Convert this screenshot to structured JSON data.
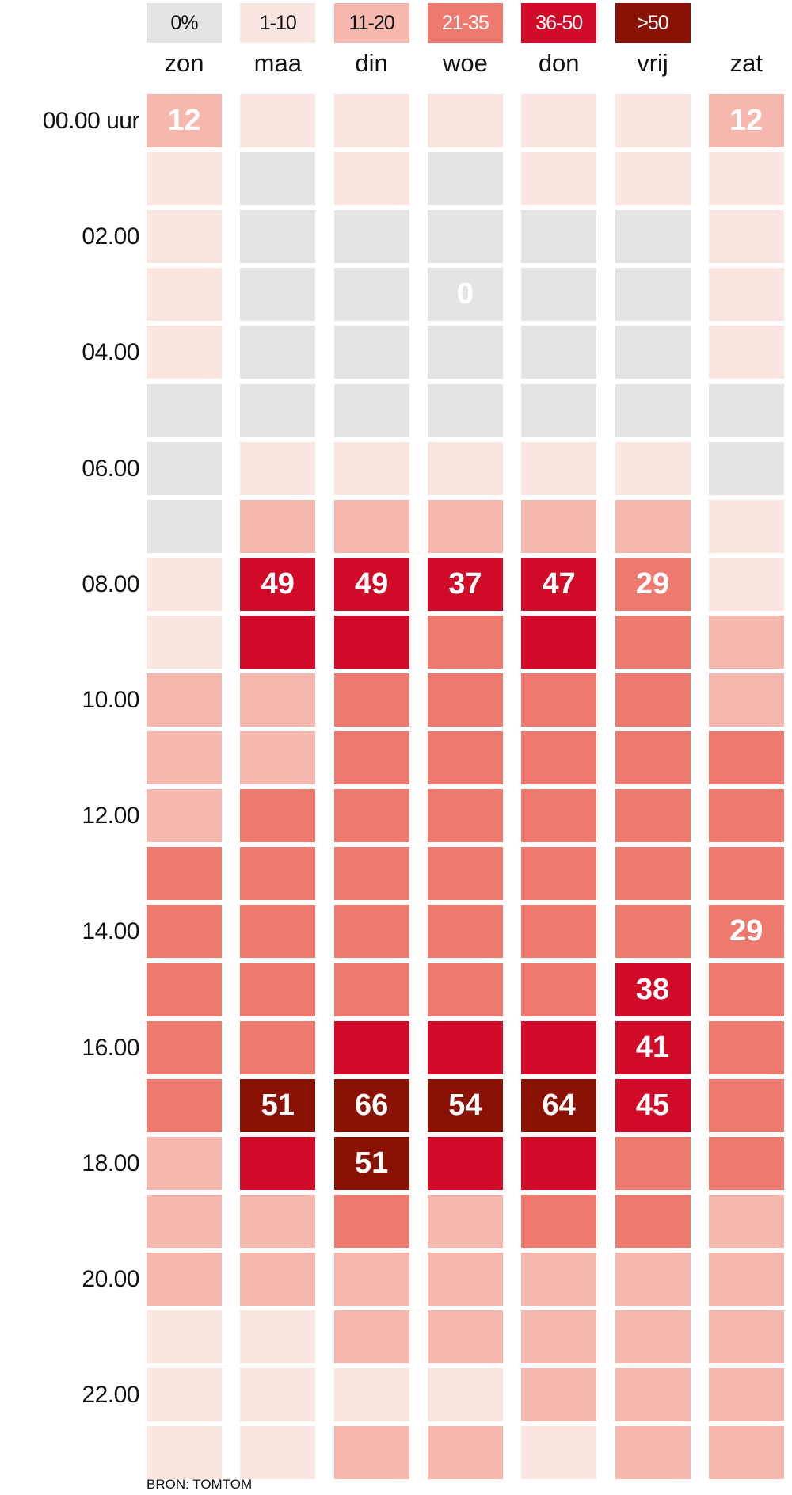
{
  "chart_data": {
    "type": "heatmap",
    "title": "",
    "columns": [
      "zon",
      "maa",
      "din",
      "woe",
      "don",
      "vrij",
      "zat"
    ],
    "row_labels": [
      "00.00 uur",
      "",
      "02.00",
      "",
      "04.00",
      "",
      "06.00",
      "",
      "08.00",
      "",
      "10.00",
      "",
      "12.00",
      "",
      "14.00",
      "",
      "16.00",
      "",
      "18.00",
      "",
      "20.00",
      "",
      "22.00",
      ""
    ],
    "legend": [
      {
        "label": "0%",
        "color": "#e4e4e4",
        "text_color": "#111111"
      },
      {
        "label": "1-10",
        "color": "#fbe5e0",
        "text_color": "#111111"
      },
      {
        "label": "11-20",
        "color": "#f6b7ae",
        "text_color": "#111111"
      },
      {
        "label": "21-35",
        "color": "#ee7a6f",
        "text_color": "#ffffff"
      },
      {
        "label": "36-50",
        "color": "#d10a28",
        "text_color": "#ffffff"
      },
      {
        "label": ">50",
        "color": "#8a1204",
        "text_color": "#ffffff"
      }
    ],
    "levels": [
      [
        2,
        1,
        1,
        1,
        1,
        1,
        2
      ],
      [
        1,
        0,
        1,
        0,
        1,
        1,
        1
      ],
      [
        1,
        0,
        0,
        0,
        0,
        0,
        1
      ],
      [
        1,
        0,
        0,
        0,
        0,
        0,
        1
      ],
      [
        1,
        0,
        0,
        0,
        0,
        0,
        1
      ],
      [
        0,
        0,
        0,
        0,
        0,
        0,
        0
      ],
      [
        0,
        1,
        1,
        1,
        1,
        1,
        0
      ],
      [
        0,
        2,
        2,
        2,
        2,
        2,
        1
      ],
      [
        1,
        4,
        4,
        4,
        4,
        3,
        1
      ],
      [
        1,
        4,
        4,
        3,
        4,
        3,
        2
      ],
      [
        2,
        2,
        3,
        3,
        3,
        3,
        2
      ],
      [
        2,
        2,
        3,
        3,
        3,
        3,
        3
      ],
      [
        2,
        3,
        3,
        3,
        3,
        3,
        3
      ],
      [
        3,
        3,
        3,
        3,
        3,
        3,
        3
      ],
      [
        3,
        3,
        3,
        3,
        3,
        3,
        3
      ],
      [
        3,
        3,
        3,
        3,
        3,
        4,
        3
      ],
      [
        3,
        3,
        4,
        4,
        4,
        4,
        3
      ],
      [
        3,
        5,
        5,
        5,
        5,
        4,
        3
      ],
      [
        2,
        4,
        5,
        4,
        4,
        3,
        3
      ],
      [
        2,
        2,
        3,
        2,
        3,
        3,
        2
      ],
      [
        2,
        2,
        2,
        2,
        2,
        2,
        2
      ],
      [
        1,
        1,
        2,
        2,
        2,
        2,
        2
      ],
      [
        1,
        1,
        1,
        1,
        2,
        2,
        2
      ],
      [
        1,
        1,
        2,
        2,
        1,
        2,
        2
      ]
    ],
    "annotations": [
      {
        "row": 0,
        "col": 0,
        "value": "12"
      },
      {
        "row": 0,
        "col": 6,
        "value": "12"
      },
      {
        "row": 3,
        "col": 3,
        "value": "0"
      },
      {
        "row": 8,
        "col": 1,
        "value": "49"
      },
      {
        "row": 8,
        "col": 2,
        "value": "49"
      },
      {
        "row": 8,
        "col": 3,
        "value": "37"
      },
      {
        "row": 8,
        "col": 4,
        "value": "47"
      },
      {
        "row": 8,
        "col": 5,
        "value": "29"
      },
      {
        "row": 14,
        "col": 6,
        "value": "29"
      },
      {
        "row": 15,
        "col": 5,
        "value": "38"
      },
      {
        "row": 16,
        "col": 5,
        "value": "41"
      },
      {
        "row": 17,
        "col": 1,
        "value": "51"
      },
      {
        "row": 17,
        "col": 2,
        "value": "66"
      },
      {
        "row": 17,
        "col": 3,
        "value": "54"
      },
      {
        "row": 17,
        "col": 4,
        "value": "64"
      },
      {
        "row": 17,
        "col": 5,
        "value": "45"
      },
      {
        "row": 18,
        "col": 2,
        "value": "51"
      }
    ]
  },
  "source": "BRON: TOMTOM"
}
